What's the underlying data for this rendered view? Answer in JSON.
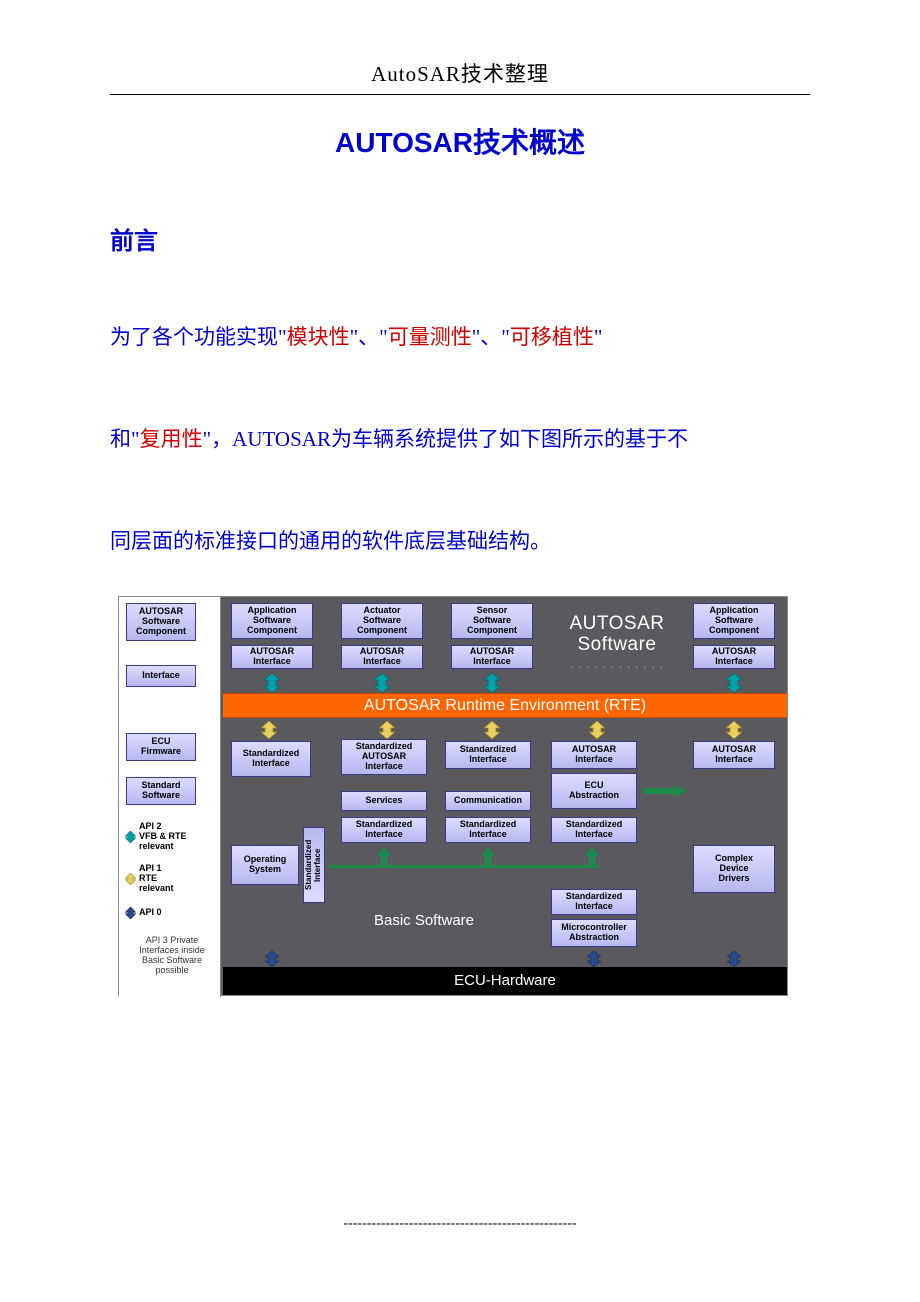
{
  "header": "AutoSAR技术整理",
  "title": "AUTOSAR技术概述",
  "section": "前言",
  "para": {
    "p1a": "为了各个功能实现\"",
    "p1_red1": "模块性",
    "p1b": "\"、\"",
    "p1_red2": "可量测性",
    "p1c": "\"、\"",
    "p1_red3": "可移植性",
    "p1d": "\"",
    "p2a": "和\"",
    "p2_red1": "复用性",
    "p2b": "\"，AUTOSAR为车辆系统提供了如下图所示的基于不",
    "p3": "同层面的标准接口的通用的软件底层基础结构。"
  },
  "diagram": {
    "type": "layered-architecture",
    "bg_color": "#5a5a5e",
    "rte_color": "#ff6600",
    "box_grad_top": "#dcdcff",
    "box_grad_bot": "#b8b8f0",
    "box_border": "#3a3a8a",
    "left_col": {
      "swc": "AUTOSAR\nSoftware\nComponent",
      "iface": "Interface",
      "ecu_fw": "ECU\nFirmware",
      "std_sw": "Standard\nSoftware"
    },
    "legend": {
      "api2": "API 2\nVFB & RTE\nrelevant",
      "api1": "API 1\nRTE\nrelevant",
      "api0": "API 0",
      "api3": "API 3 Private\nInterfaces inside\nBasic Software\npossible"
    },
    "swc_row": {
      "app1": "Application\nSoftware\nComponent",
      "act": "Actuator\nSoftware\nComponent",
      "sens": "Sensor\nSoftware\nComponent",
      "app2": "Application\nSoftware\nComponent",
      "iface": "AUTOSAR\nInterface",
      "sw_label": "AUTOSAR\nSoftware"
    },
    "rte": "AUTOSAR Runtime Environment (RTE)",
    "bsw": {
      "std_iface": "Standardized\nInterface",
      "std_autosar_iface": "Standardized\nAUTOSAR\nInterface",
      "autosar_iface": "AUTOSAR\nInterface",
      "services": "Services",
      "comm": "Communication",
      "ecu_abs": "ECU\nAbstraction",
      "os": "Operating\nSystem",
      "std_iface1": "Standardized\nInterface",
      "std_iface2": "Standardized\nInterface",
      "std_iface3": "Standardized\nInterface",
      "std_iface4": "Standardized\nInterface",
      "mcu_abs": "Microcontroller\nAbstraction",
      "cdd": "Complex\nDevice\nDrivers",
      "vert_si": "Standardized\nInterface",
      "label": "Basic Software"
    },
    "ecu_hw": "ECU-Hardware"
  },
  "footer_dashes": "--------------------------------------------------"
}
